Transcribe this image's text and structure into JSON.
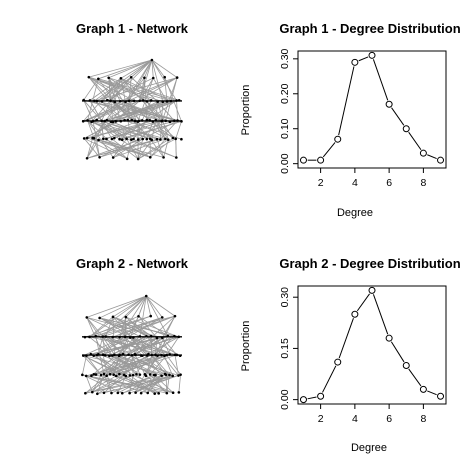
{
  "network_panels": [
    {
      "title": "Graph 1 - Network"
    },
    {
      "title": "Graph 2 - Network"
    }
  ],
  "chart_data": [
    {
      "type": "line",
      "title": "Graph 1 - Degree Distribution",
      "xlabel": "Degree",
      "ylabel": "Proportion",
      "xlim": [
        1,
        9
      ],
      "ylim": [
        0,
        0.31
      ],
      "xticks": [
        2,
        4,
        6,
        8
      ],
      "yticks": [
        0.0,
        0.1,
        0.2,
        0.3
      ],
      "ytick_labels": [
        "0.00",
        "0.10",
        "0.20",
        "0.30"
      ],
      "grid": false,
      "markers": "open-circle",
      "x": [
        1,
        2,
        3,
        4,
        5,
        6,
        7,
        8,
        9
      ],
      "y": [
        0.01,
        0.01,
        0.07,
        0.29,
        0.31,
        0.17,
        0.1,
        0.03,
        0.01
      ]
    },
    {
      "type": "line",
      "title": "Graph 2 - Degree Distribution",
      "xlabel": "Degree",
      "ylabel": "Proportion",
      "xlim": [
        1,
        9
      ],
      "ylim": [
        0,
        0.32
      ],
      "xticks": [
        2,
        4,
        6,
        8
      ],
      "yticks": [
        0.0,
        0.15,
        0.3
      ],
      "ytick_labels": [
        "0.00",
        "0.15",
        "0.30"
      ],
      "grid": false,
      "markers": "open-circle",
      "x": [
        1,
        2,
        3,
        4,
        5,
        6,
        7,
        8,
        9
      ],
      "y": [
        0.0,
        0.01,
        0.11,
        0.25,
        0.32,
        0.18,
        0.1,
        0.03,
        0.01
      ]
    }
  ]
}
